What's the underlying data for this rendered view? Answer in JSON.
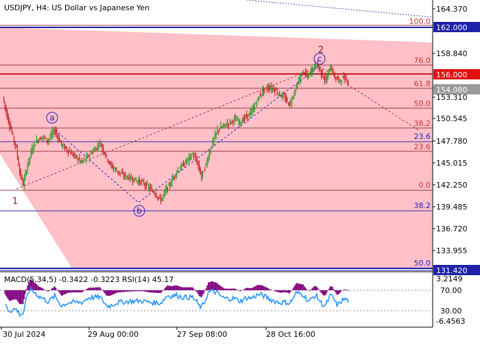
{
  "header": {
    "title": "USDJPY, H4:  US Dollar vs Japanese Yen"
  },
  "price_axis": {
    "ticks": [
      "164.370",
      "158.840",
      "153.310",
      "150.545",
      "147.780",
      "145.015",
      "142.250",
      "139.485",
      "136.720",
      "133.955"
    ],
    "highlighted": [
      {
        "label": "162.000",
        "color": "#1e22a8"
      },
      {
        "label": "156.000",
        "color": "#e01010"
      },
      {
        "label": "154.080",
        "color": "#9a9a9a"
      },
      {
        "label": "131.420",
        "color": "#1e22a8"
      }
    ]
  },
  "fib_labels": [
    {
      "text": "100.0",
      "color": "#d03030"
    },
    {
      "text": "76.0",
      "color": "#d03030"
    },
    {
      "text": "61.8",
      "color": "#d03030"
    },
    {
      "text": "50.0",
      "color": "#d03030"
    },
    {
      "text": "38.2",
      "color": "#d03030"
    },
    {
      "text": "23.6",
      "color": "#2020c0"
    },
    {
      "text": "23.6",
      "color": "#d03030"
    },
    {
      "text": "0.0",
      "color": "#d03030"
    },
    {
      "text": "38.2",
      "color": "#2020c0"
    },
    {
      "text": "50.0",
      "color": "#2020c0"
    }
  ],
  "wave_labels": {
    "w1": "1",
    "w2": "2",
    "wa": "a",
    "wb": "b",
    "wc": "c"
  },
  "indicator": {
    "title": "MACD(5,34,5) -0.3422 -0.3223 RSI(14) 45.17",
    "axis_ticks": [
      "3.2149",
      "70.00",
      "30.00",
      "-6.4563"
    ]
  },
  "time_axis": {
    "labels": [
      "30 Jul 2024",
      "29 Aug 00:00",
      "27 Sep 08:00",
      "28 Oct 16:00"
    ]
  },
  "colors": {
    "bull": "#1a9a1a",
    "bear": "#c01818",
    "fib_zone": "#ffc0c8",
    "macd_hist": "#800080",
    "rsi": "#1e90ff"
  },
  "chart_data": {
    "type": "candlestick",
    "symbol": "USDJPY",
    "timeframe": "H4",
    "x_start": "30 Jul 2024",
    "x_end": "after 28 Oct 2024",
    "y_range": [
      131.42,
      165.2
    ],
    "path_points": [
      [
        0,
        153.0
      ],
      [
        4,
        150.5
      ],
      [
        8,
        148.5
      ],
      [
        12,
        146.5
      ],
      [
        15,
        143.5
      ],
      [
        18,
        142.0
      ],
      [
        22,
        144.5
      ],
      [
        26,
        146.5
      ],
      [
        30,
        147.5
      ],
      [
        35,
        148.0
      ],
      [
        40,
        147.5
      ],
      [
        46,
        148.8
      ],
      [
        52,
        147.0
      ],
      [
        58,
        146.2
      ],
      [
        64,
        145.5
      ],
      [
        70,
        144.8
      ],
      [
        76,
        145.6
      ],
      [
        82,
        146.5
      ],
      [
        86,
        147.2
      ],
      [
        90,
        146.0
      ],
      [
        95,
        144.5
      ],
      [
        100,
        143.8
      ],
      [
        106,
        143.2
      ],
      [
        112,
        142.8
      ],
      [
        118,
        142.5
      ],
      [
        124,
        142.2
      ],
      [
        130,
        141.5
      ],
      [
        135,
        140.8
      ],
      [
        140,
        140.0
      ],
      [
        144,
        141.2
      ],
      [
        148,
        142.0
      ],
      [
        153,
        143.4
      ],
      [
        158,
        144.2
      ],
      [
        163,
        145.0
      ],
      [
        168,
        145.8
      ],
      [
        172,
        144.8
      ],
      [
        176,
        143.0
      ],
      [
        180,
        144.5
      ],
      [
        185,
        147.0
      ],
      [
        190,
        148.8
      ],
      [
        195,
        149.3
      ],
      [
        200,
        149.7
      ],
      [
        205,
        150.2
      ],
      [
        210,
        149.8
      ],
      [
        215,
        150.5
      ],
      [
        220,
        151.0
      ],
      [
        225,
        152.5
      ],
      [
        230,
        153.8
      ],
      [
        235,
        154.2
      ],
      [
        240,
        154.0
      ],
      [
        245,
        153.3
      ],
      [
        250,
        152.8
      ],
      [
        254,
        152.0
      ],
      [
        258,
        153.6
      ],
      [
        262,
        155.0
      ],
      [
        266,
        156.2
      ],
      [
        270,
        155.5
      ],
      [
        274,
        156.5
      ],
      [
        278,
        157.2
      ],
      [
        282,
        156.0
      ],
      [
        286,
        155.0
      ],
      [
        290,
        156.8
      ],
      [
        294,
        155.5
      ],
      [
        298,
        155.0
      ],
      [
        302,
        155.5
      ],
      [
        306,
        155.0
      ]
    ],
    "fib_levels": [
      "100.0",
      "76.0",
      "61.8",
      "50.0",
      "38.2",
      "23.6",
      "0.0"
    ],
    "lower_fib_levels": [
      "23.6",
      "38.2",
      "50.0"
    ],
    "horizontal_levels": [
      162.0,
      156.0,
      154.08,
      131.42
    ],
    "elliott_waves": [
      "1",
      "2",
      "a",
      "b",
      "c"
    ],
    "indicators": {
      "macd": {
        "params": "5,34,5",
        "main": -0.3422,
        "signal": -0.3223
      },
      "rsi": {
        "period": 14,
        "value": 45.17,
        "levels": [
          70.0,
          30.0
        ]
      },
      "axis": [
        3.2149,
        -6.4563
      ]
    }
  }
}
